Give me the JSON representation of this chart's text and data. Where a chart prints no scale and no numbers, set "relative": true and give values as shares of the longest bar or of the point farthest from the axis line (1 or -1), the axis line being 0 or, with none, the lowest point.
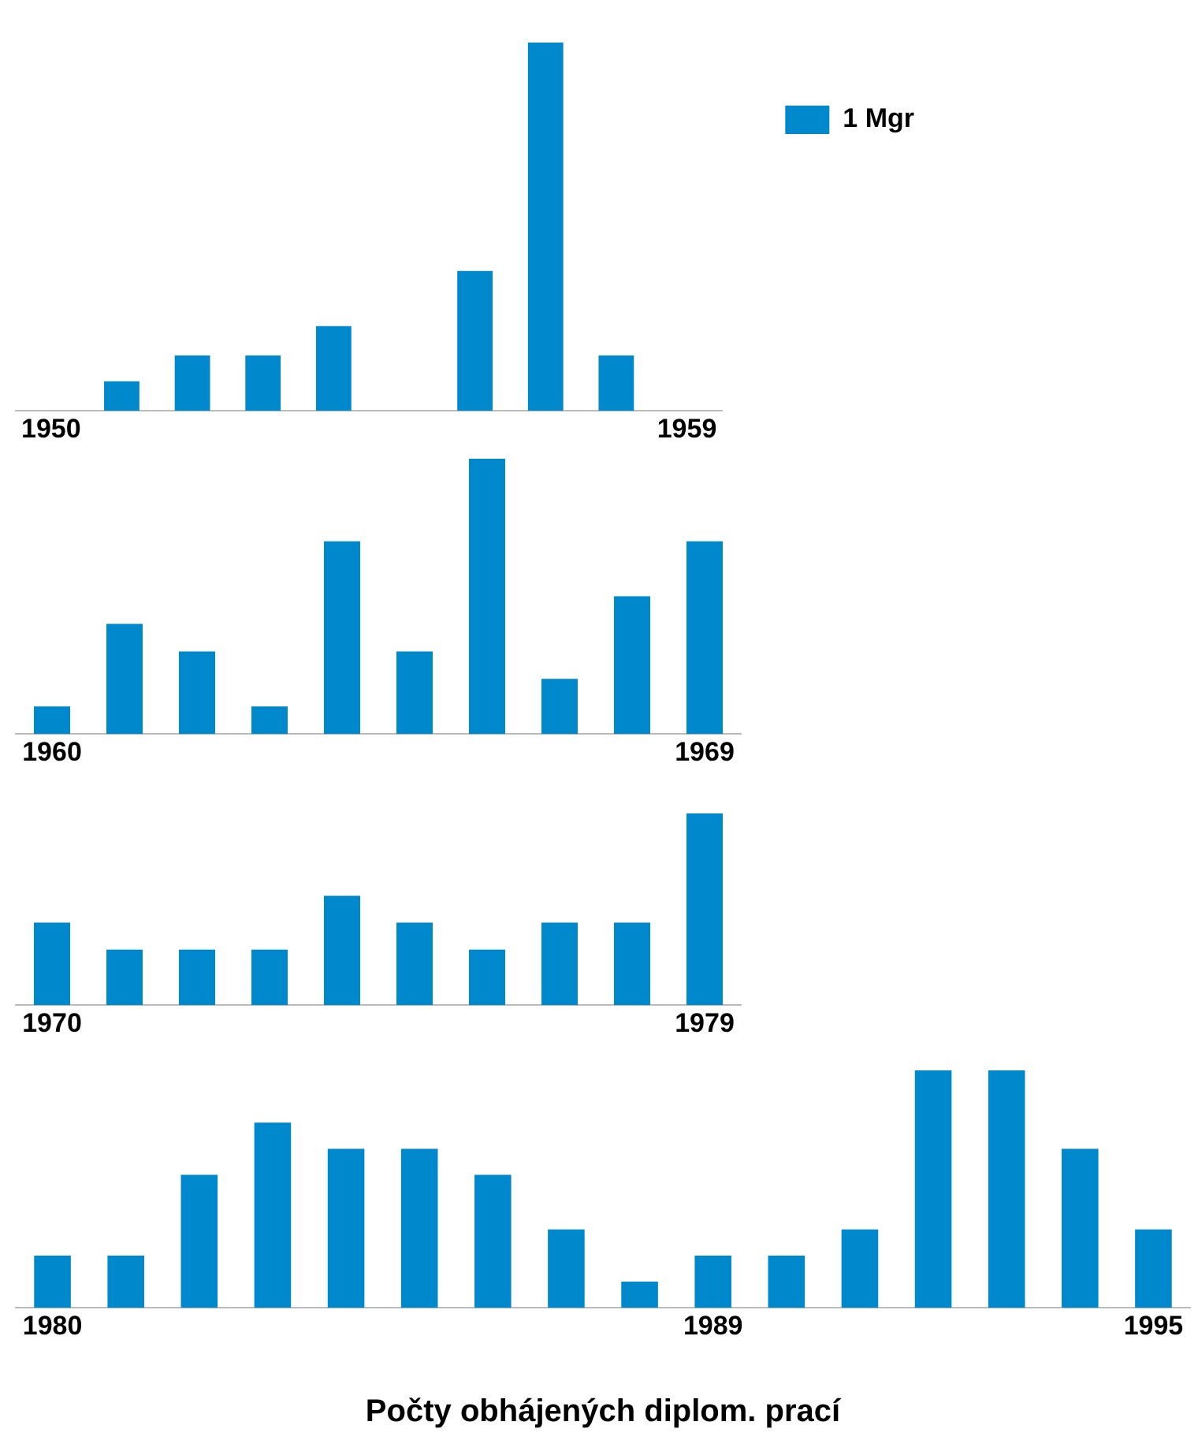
{
  "chart_data": [
    {
      "type": "bar",
      "relative": true,
      "legend": "top right",
      "categories": [
        "1950",
        null,
        null,
        null,
        null,
        null,
        null,
        null,
        null,
        "1959"
      ],
      "series": [
        {
          "name": "1 Mgr",
          "color": "#0088cc",
          "values": [
            0,
            0.08,
            0.15,
            0.15,
            0.23,
            0,
            0.38,
            1,
            0.15,
            0
          ]
        }
      ]
    },
    {
      "type": "bar",
      "relative": true,
      "categories": [
        "1960",
        null,
        null,
        null,
        null,
        null,
        null,
        null,
        null,
        "1969"
      ],
      "series": [
        {
          "color": "#0088cc",
          "values": [
            0.1,
            0.4,
            0.3,
            0.1,
            0.7,
            0.3,
            1,
            0.2,
            0.5,
            0.7
          ]
        }
      ]
    },
    {
      "type": "bar",
      "relative": true,
      "categories": [
        "1970",
        null,
        null,
        null,
        null,
        null,
        null,
        null,
        null,
        "1979"
      ],
      "series": [
        {
          "color": "#0088cc",
          "values": [
            0.43,
            0.29,
            0.29,
            0.29,
            0.57,
            0.43,
            0.29,
            0.43,
            0.43,
            1
          ]
        }
      ]
    },
    {
      "type": "bar",
      "relative": true,
      "title": "Počty obhájených diplom. prací",
      "categories": [
        "1980",
        null,
        null,
        null,
        null,
        null,
        null,
        null,
        null,
        "1989",
        null,
        null,
        null,
        null,
        null,
        "1995"
      ],
      "series": [
        {
          "color": "#0088cc",
          "values": [
            0.22,
            0.22,
            0.56,
            0.78,
            0.67,
            0.67,
            0.56,
            0.33,
            0.11,
            0.22,
            0.22,
            0.33,
            1,
            1,
            0.67,
            0.33
          ]
        }
      ]
    }
  ]
}
